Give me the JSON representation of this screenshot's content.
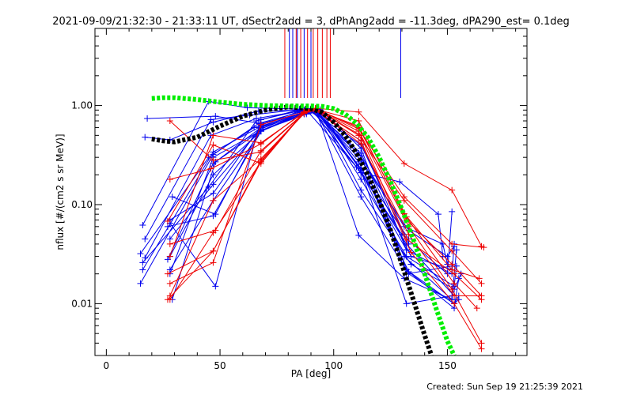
{
  "chart_data": {
    "type": "line",
    "title": "2021-09-09/21:32:30 - 21:33:11 UT, dSectr2add = 3, dPhAng2add = -11.3deg, dPA290_est=  0.1deg",
    "xlabel": "PA [deg]",
    "ylabel": "nflux [#/(cm2 s sr MeV)]",
    "footer": "Created: Sun Sep 19 21:25:39 2021",
    "xlim": [
      -5,
      185
    ],
    "ylim": [
      0.003,
      6
    ],
    "yscale": "log",
    "x_ticks": [
      {
        "value": 0,
        "label": "0"
      },
      {
        "value": 50,
        "label": "50"
      },
      {
        "value": 100,
        "label": "100"
      },
      {
        "value": 150,
        "label": "150"
      }
    ],
    "y_ticks": [
      {
        "value": 0.01,
        "label": "0.01"
      },
      {
        "value": 0.1,
        "label": "0.10"
      },
      {
        "value": 1,
        "label": "1.00"
      }
    ],
    "colors": {
      "blue": "#0000ee",
      "red": "#ee0000",
      "black": "#000000",
      "green": "#00ee00"
    },
    "spikes": [
      {
        "color": "red",
        "x": [
          78.5,
          83.5,
          85.5,
          88.5,
          91,
          93,
          95,
          97,
          98.5
        ]
      },
      {
        "color": "blue",
        "x": [
          80.5,
          82,
          84,
          87,
          90,
          129.5
        ]
      }
    ],
    "series": [
      {
        "color": "blue",
        "x": [
          16,
          45,
          62,
          85,
          90,
          112,
          129,
          146,
          148
        ],
        "y": [
          0.062,
          1.1,
          0.95,
          0.92,
          0.93,
          0.21,
          0.17,
          0.08,
          0.03
        ]
      },
      {
        "color": "blue",
        "x": [
          17,
          46,
          63,
          83,
          88,
          110,
          130,
          150,
          152
        ],
        "y": [
          0.045,
          0.72,
          0.8,
          0.9,
          0.9,
          0.24,
          0.05,
          0.02,
          0.085
        ]
      },
      {
        "color": "blue",
        "x": [
          15,
          45,
          65,
          84,
          90,
          111,
          131,
          148,
          150
        ],
        "y": [
          0.032,
          0.3,
          0.6,
          0.86,
          0.88,
          0.33,
          0.06,
          0.04,
          0.025
        ]
      },
      {
        "color": "blue",
        "x": [
          17,
          46,
          66,
          85,
          91,
          112,
          133,
          150,
          153
        ],
        "y": [
          0.029,
          0.5,
          0.74,
          0.88,
          0.9,
          0.28,
          0.055,
          0.03,
          0.038
        ]
      },
      {
        "color": "blue",
        "x": [
          16,
          45,
          66,
          86,
          92,
          111,
          132,
          152,
          153
        ],
        "y": [
          0.026,
          0.15,
          0.7,
          0.92,
          0.93,
          0.24,
          0.035,
          0.02,
          0.04
        ]
      },
      {
        "color": "blue",
        "x": [
          15,
          47,
          67,
          87,
          93,
          112,
          132,
          153,
          154
        ],
        "y": [
          0.016,
          0.32,
          0.66,
          0.88,
          0.9,
          0.18,
          0.03,
          0.015,
          0.024
        ]
      },
      {
        "color": "blue",
        "x": [
          16,
          47,
          67,
          87,
          92,
          111,
          131,
          152,
          154
        ],
        "y": [
          0.022,
          0.34,
          0.6,
          0.85,
          0.93,
          0.049,
          0.018,
          0.011,
          0.035
        ]
      },
      {
        "color": "blue",
        "x": [
          27,
          47,
          68,
          88,
          93,
          112,
          134,
          153,
          156
        ],
        "y": [
          0.028,
          0.26,
          0.56,
          0.86,
          0.92,
          0.14,
          0.025,
          0.014,
          0.02
        ]
      },
      {
        "color": "blue",
        "x": [
          28,
          47,
          68,
          88,
          94,
          112,
          133,
          153,
          155
        ],
        "y": [
          0.022,
          0.11,
          0.55,
          0.86,
          0.9,
          0.22,
          0.021,
          0.009,
          0.018
        ]
      },
      {
        "color": "blue",
        "x": [
          28,
          48,
          68,
          88,
          94,
          112,
          132,
          153,
          155
        ],
        "y": [
          0.065,
          0.015,
          0.72,
          0.92,
          0.91,
          0.37,
          0.022,
          0.01,
          0.012
        ]
      },
      {
        "color": "blue",
        "x": [
          18,
          48,
          68,
          88,
          92,
          111,
          131,
          152
        ],
        "y": [
          0.74,
          0.78,
          0.66,
          0.86,
          0.9,
          0.27,
          0.03,
          0.011
        ]
      },
      {
        "color": "blue",
        "x": [
          17,
          28,
          47,
          67,
          87,
          93,
          112,
          132,
          152
        ],
        "y": [
          0.48,
          0.45,
          0.68,
          0.88,
          0.9,
          0.92,
          0.22,
          0.01,
          0.012
        ]
      },
      {
        "color": "blue",
        "x": [
          28,
          47,
          68,
          87,
          91,
          112,
          132,
          153
        ],
        "y": [
          0.07,
          0.13,
          0.62,
          0.85,
          0.88,
          0.21,
          0.04,
          0.012
        ]
      },
      {
        "color": "blue",
        "x": [
          29,
          48,
          68,
          87,
          93,
          112,
          133
        ],
        "y": [
          0.12,
          0.08,
          0.6,
          0.82,
          0.87,
          0.23,
          0.045
        ]
      },
      {
        "color": "blue",
        "x": [
          28,
          47,
          68,
          86,
          92,
          112,
          132,
          152
        ],
        "y": [
          0.045,
          0.16,
          0.58,
          0.84,
          0.88,
          0.31,
          0.02,
          0.024
        ]
      },
      {
        "color": "blue",
        "x": [
          28,
          47,
          68,
          88,
          92,
          112,
          134,
          152
        ],
        "y": [
          0.02,
          0.3,
          0.56,
          0.82,
          0.86,
          0.33,
          0.03,
          0.022
        ]
      },
      {
        "color": "blue",
        "x": [
          29,
          48,
          68,
          87,
          93,
          112,
          132
        ],
        "y": [
          0.011,
          0.27,
          0.6,
          0.82,
          0.86,
          0.44,
          0.035
        ]
      },
      {
        "color": "blue",
        "x": [
          28,
          47,
          68,
          88,
          92,
          112,
          133,
          153,
          155
        ],
        "y": [
          0.03,
          0.2,
          0.55,
          0.85,
          0.88,
          0.12,
          0.02,
          0.01,
          0.011
        ]
      },
      {
        "color": "blue",
        "x": [
          27,
          47,
          68,
          88,
          90,
          112,
          133
        ],
        "y": [
          0.06,
          0.077,
          0.55,
          0.85,
          0.88,
          0.4,
          0.04
        ]
      },
      {
        "color": "red",
        "x": [
          27,
          47,
          68,
          88,
          92,
          111,
          131,
          152,
          165
        ],
        "y": [
          0.011,
          0.034,
          0.28,
          0.91,
          0.94,
          0.86,
          0.26,
          0.14,
          0.038
        ]
      },
      {
        "color": "red",
        "x": [
          28,
          47,
          68,
          88,
          92,
          111,
          131,
          152,
          166
        ],
        "y": [
          0.011,
          0.052,
          0.27,
          0.9,
          0.93,
          0.58,
          0.12,
          0.04,
          0.037
        ]
      },
      {
        "color": "red",
        "x": [
          28,
          46,
          68,
          88,
          92,
          111,
          131,
          152,
          165
        ],
        "y": [
          0.18,
          0.23,
          0.41,
          0.9,
          0.93,
          0.5,
          0.11,
          0.034,
          0.016
        ]
      },
      {
        "color": "red",
        "x": [
          28,
          47,
          68,
          88,
          92,
          111,
          131,
          152,
          164
        ],
        "y": [
          0.7,
          0.28,
          0.34,
          0.88,
          0.93,
          0.6,
          0.081,
          0.022,
          0.018
        ]
      },
      {
        "color": "red",
        "x": [
          27,
          47,
          68,
          87,
          91,
          111,
          132,
          152,
          165
        ],
        "y": [
          0.068,
          0.4,
          0.26,
          0.86,
          0.92,
          0.62,
          0.07,
          0.025,
          0.012
        ]
      },
      {
        "color": "red",
        "x": [
          28,
          47,
          68,
          87,
          92,
          111,
          132,
          153,
          165
        ],
        "y": [
          0.016,
          0.026,
          0.64,
          0.86,
          0.92,
          0.55,
          0.045,
          0.02,
          0.011
        ]
      },
      {
        "color": "red",
        "x": [
          28,
          47,
          68,
          87,
          92,
          112,
          133,
          152,
          165
        ],
        "y": [
          0.03,
          0.5,
          0.42,
          0.85,
          0.92,
          0.5,
          0.06,
          0.014,
          0.004
        ]
      },
      {
        "color": "red",
        "x": [
          28,
          48,
          68,
          87,
          92,
          112,
          134,
          153,
          165
        ],
        "y": [
          0.04,
          0.055,
          0.35,
          0.84,
          0.9,
          0.44,
          0.033,
          0.01,
          0.0035
        ]
      },
      {
        "color": "red",
        "x": [
          28,
          47,
          68,
          87,
          92,
          112,
          133,
          153,
          164
        ],
        "y": [
          0.012,
          0.11,
          0.29,
          0.83,
          0.9,
          0.41,
          0.05,
          0.012,
          0.012
        ]
      },
      {
        "color": "red",
        "x": [
          27,
          47,
          68,
          87,
          92,
          111,
          132,
          153,
          163
        ],
        "y": [
          0.02,
          0.034,
          0.27,
          0.86,
          0.92,
          0.7,
          0.075,
          0.016,
          0.009
        ]
      }
    ],
    "reference_curves": [
      {
        "color": "black",
        "dashed": true,
        "x": [
          20,
          25,
          30,
          40,
          50,
          60,
          70,
          80,
          90,
          95,
          100,
          105,
          110,
          115,
          120,
          125,
          130,
          135,
          140,
          143
        ],
        "y": [
          0.46,
          0.44,
          0.43,
          0.48,
          0.62,
          0.78,
          0.9,
          0.97,
          0.93,
          0.85,
          0.68,
          0.5,
          0.33,
          0.2,
          0.11,
          0.055,
          0.025,
          0.011,
          0.0048,
          0.003
        ]
      },
      {
        "color": "green",
        "dashed": true,
        "x": [
          20,
          25,
          30,
          40,
          50,
          60,
          70,
          80,
          90,
          95,
          100,
          105,
          110,
          115,
          120,
          125,
          130,
          135,
          140,
          145,
          150,
          153
        ],
        "y": [
          1.18,
          1.2,
          1.2,
          1.15,
          1.08,
          1.03,
          1.0,
          0.99,
          0.99,
          0.98,
          0.93,
          0.82,
          0.66,
          0.48,
          0.3,
          0.17,
          0.09,
          0.045,
          0.02,
          0.009,
          0.0042,
          0.003
        ]
      }
    ]
  }
}
